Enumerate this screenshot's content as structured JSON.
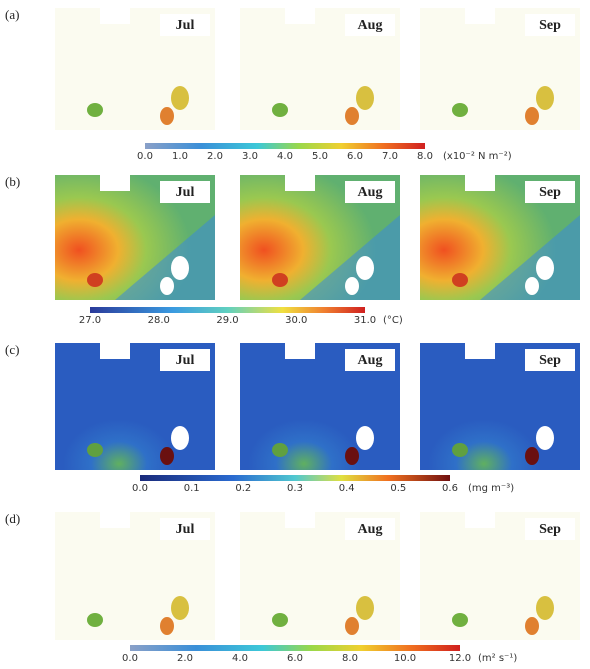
{
  "panels": [
    {
      "label": "(a)",
      "months": [
        "Jul",
        "Aug",
        "Sep"
      ],
      "colorbar_ticks": [
        "0.0",
        "1.0",
        "2.0",
        "3.0",
        "4.0",
        "5.0",
        "6.0",
        "7.0",
        "8.0"
      ],
      "unit": "(x10⁻² N m⁻²)"
    },
    {
      "label": "(b)",
      "months": [
        "Jul",
        "Aug",
        "Sep"
      ],
      "colorbar_ticks": [
        "27.0",
        "28.0",
        "29.0",
        "30.0",
        "31.0"
      ],
      "unit": "(°C)"
    },
    {
      "label": "(c)",
      "months": [
        "Jul",
        "Aug",
        "Sep"
      ],
      "colorbar_ticks": [
        "0.0",
        "0.1",
        "0.2",
        "0.3",
        "0.4",
        "0.5",
        "0.6"
      ],
      "unit": "(mg m⁻³)"
    },
    {
      "label": "(d)",
      "months": [
        "Jul",
        "Aug",
        "Sep"
      ],
      "colorbar_ticks": [
        "0.0",
        "2.0",
        "4.0",
        "6.0",
        "8.0",
        "10.0",
        "12.0"
      ],
      "unit": "(m² s⁻¹)"
    }
  ]
}
